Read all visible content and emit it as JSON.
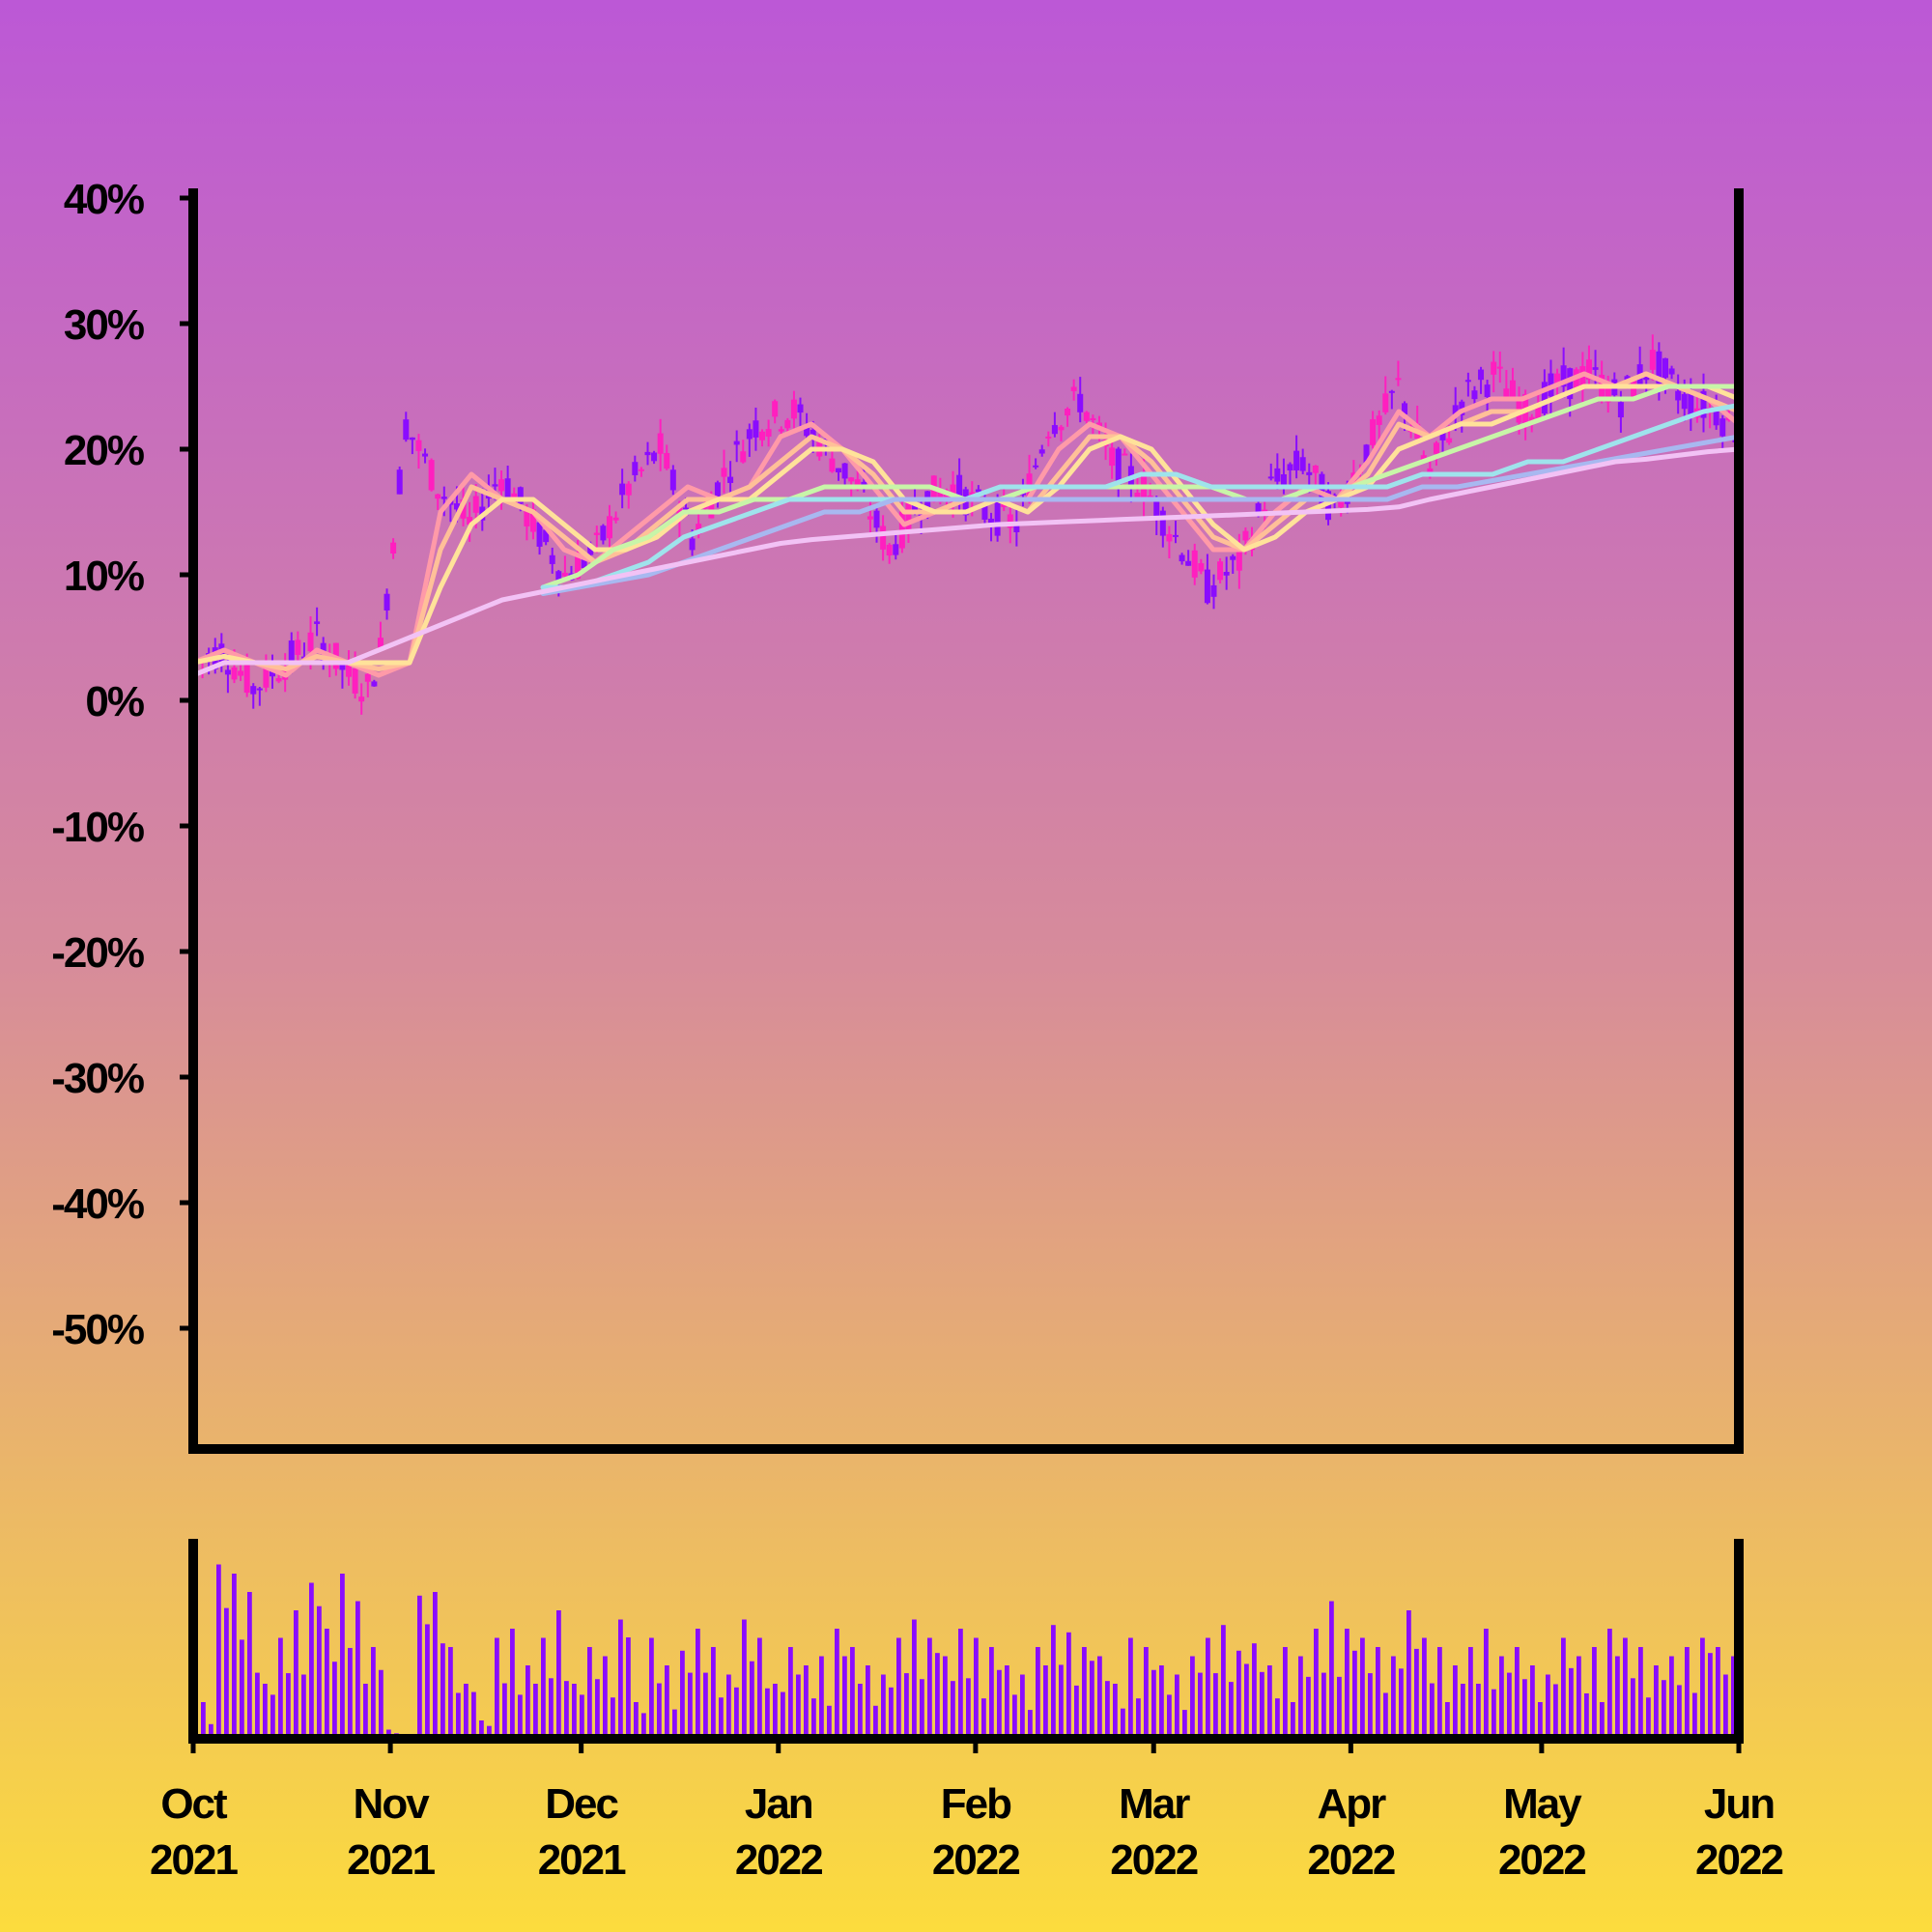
{
  "chart_data": {
    "type": "line",
    "subtype": "candlestick-with-moving-averages-and-volume",
    "y_axis": {
      "unit": "%",
      "ticks": [
        "40%",
        "30%",
        "20%",
        "10%",
        "0%",
        "-10%",
        "-20%",
        "-30%",
        "-40%",
        "-50%"
      ],
      "tick_values": [
        40,
        30,
        20,
        10,
        0,
        -10,
        -20,
        -30,
        -40,
        -50
      ],
      "range": [
        -60,
        40
      ]
    },
    "x_axis": {
      "range": [
        "2021-10-01",
        "2022-06-01"
      ],
      "ticks": [
        {
          "date": "2021-10-01",
          "month": "Oct",
          "year": "2021"
        },
        {
          "date": "2021-11-01",
          "month": "Nov",
          "year": "2021"
        },
        {
          "date": "2021-12-01",
          "month": "Dec",
          "year": "2021"
        },
        {
          "date": "2022-01-01",
          "month": "Jan",
          "year": "2022"
        },
        {
          "date": "2022-02-01",
          "month": "Feb",
          "year": "2022"
        },
        {
          "date": "2022-03-01",
          "month": "Mar",
          "year": "2022"
        },
        {
          "date": "2022-04-01",
          "month": "Apr",
          "year": "2022"
        },
        {
          "date": "2022-05-01",
          "month": "May",
          "year": "2022"
        },
        {
          "date": "2022-06-01",
          "month": "Jun",
          "year": "2022"
        }
      ]
    },
    "price_series": {
      "dates": [
        "2021-10-01",
        "2021-10-05",
        "2021-10-10",
        "2021-10-15",
        "2021-10-20",
        "2021-10-25",
        "2021-10-28",
        "2021-10-30",
        "2021-11-03",
        "2021-11-08",
        "2021-11-13",
        "2021-11-18",
        "2021-11-23",
        "2021-11-28",
        "2021-12-03",
        "2021-12-08",
        "2021-12-13",
        "2021-12-18",
        "2021-12-23",
        "2021-12-28",
        "2022-01-03",
        "2022-01-08",
        "2022-01-13",
        "2022-01-18",
        "2022-01-23",
        "2022-01-28",
        "2022-02-02",
        "2022-02-07",
        "2022-02-12",
        "2022-02-17",
        "2022-02-22",
        "2022-02-27",
        "2022-03-04",
        "2022-03-09",
        "2022-03-14",
        "2022-03-19",
        "2022-03-24",
        "2022-03-29",
        "2022-04-03",
        "2022-04-08",
        "2022-04-13",
        "2022-04-18",
        "2022-04-23",
        "2022-04-28",
        "2022-05-03",
        "2022-05-08",
        "2022-05-13",
        "2022-05-18",
        "2022-05-23",
        "2022-05-28",
        "2022-06-01"
      ],
      "values": [
        3,
        4,
        1,
        3,
        5,
        2,
        1,
        4,
        22,
        17,
        14,
        18,
        14,
        10,
        12,
        17,
        20,
        13,
        18,
        22,
        23,
        20,
        17,
        12,
        16,
        17,
        15,
        14,
        22,
        24,
        19,
        17,
        13,
        9,
        11,
        17,
        19,
        15,
        20,
        25,
        18,
        24,
        26,
        23,
        25,
        26,
        24,
        27,
        24,
        23,
        21
      ]
    },
    "moving_averages": [
      {
        "color": "#ff9aa8",
        "values": [
          3,
          4,
          3,
          2,
          4,
          3,
          2,
          3,
          15,
          18,
          16,
          15,
          12,
          11,
          13,
          15,
          17,
          16,
          17,
          21,
          22,
          20,
          17,
          14,
          15,
          16,
          16,
          16,
          20,
          22,
          21,
          18,
          15,
          12,
          12,
          15,
          17,
          16,
          19,
          23,
          21,
          23,
          24,
          24,
          25,
          26,
          25,
          26,
          25,
          24,
          22
        ]
      },
      {
        "color": "#ffc098",
        "values": [
          3,
          3.5,
          3,
          2.5,
          3.5,
          3,
          2.5,
          3,
          12,
          17,
          16,
          15,
          13,
          11,
          12,
          14,
          16,
          16,
          17,
          19,
          21,
          20,
          18,
          15,
          15,
          16,
          16,
          15,
          18,
          21,
          21,
          19,
          16,
          13,
          12,
          14,
          16,
          16,
          18,
          22,
          21,
          22,
          23,
          23,
          24,
          25,
          25,
          26,
          25,
          24,
          23
        ]
      },
      {
        "color": "#ffe29a",
        "values": [
          3,
          3.5,
          3,
          3,
          3,
          3,
          3,
          3,
          9,
          14,
          16,
          16,
          14,
          12,
          12,
          13,
          15,
          16,
          16,
          18,
          20,
          20,
          19,
          16,
          15,
          15,
          16,
          15,
          17,
          20,
          21,
          20,
          17,
          14,
          12,
          13,
          15,
          16,
          17,
          20,
          21,
          22,
          22,
          23,
          24,
          25,
          25,
          25,
          25,
          25,
          24
        ]
      },
      {
        "color": "#c8f5a8",
        "start": "2021-11-25",
        "values": [
          9,
          10,
          12,
          13,
          15,
          15,
          16,
          16,
          17,
          17,
          17,
          17,
          16,
          16,
          17,
          17,
          17,
          17,
          17,
          17,
          16,
          16,
          17,
          17,
          18,
          19,
          20,
          21,
          22,
          23,
          24,
          24,
          25,
          25,
          25
        ]
      },
      {
        "color": "#9fe3ec",
        "start": "2021-11-25",
        "values": [
          9,
          9,
          10,
          11,
          13,
          14,
          15,
          16,
          16,
          16,
          16,
          16,
          16,
          17,
          17,
          17,
          17,
          18,
          18,
          17,
          17,
          17,
          17,
          17,
          17,
          18,
          18,
          18,
          19,
          19,
          20,
          21,
          22,
          23,
          23.5
        ]
      },
      {
        "color": "#a8b8f0",
        "start": "2021-11-25",
        "values": [
          8.5,
          9,
          9.5,
          10,
          11,
          12,
          13,
          14,
          15,
          15,
          16,
          16,
          16,
          16,
          16,
          16,
          16,
          16,
          16,
          16,
          16,
          16,
          16,
          16,
          16,
          17,
          17,
          17.5,
          18,
          18.5,
          19,
          19.5,
          20,
          20.5,
          21
        ]
      },
      {
        "color": "#f2c2f5",
        "values": [
          2,
          3,
          3,
          3,
          3,
          3,
          4,
          5,
          6,
          7,
          8,
          8.5,
          9,
          9.5,
          10,
          10.5,
          11,
          11.5,
          12,
          12.5,
          12.8,
          13,
          13.2,
          13.4,
          13.6,
          13.8,
          14,
          14.1,
          14.2,
          14.3,
          14.4,
          14.5,
          14.6,
          14.7,
          14.8,
          14.9,
          15,
          15.1,
          15.2,
          15.4,
          16,
          16.5,
          17,
          17.5,
          18,
          18.5,
          19,
          19.2,
          19.5,
          19.8,
          20
        ]
      }
    ],
    "volume": {
      "note": "relative daily volume, 0-1",
      "values": [
        0.2,
        0.95,
        0.9,
        0.8,
        0.3,
        0.55,
        0.7,
        0.85,
        0.6,
        0.9,
        0.75,
        0.5,
        0.05,
        0.0,
        0.78,
        0.8,
        0.5,
        0.3,
        0.1,
        0.55,
        0.6,
        0.4,
        0.55,
        0.7,
        0.3,
        0.5,
        0.45,
        0.65,
        0.2,
        0.55,
        0.4,
        0.48,
        0.6,
        0.5,
        0.35,
        0.65,
        0.55,
        0.3,
        0.5,
        0.4,
        0.45,
        0.6,
        0.5,
        0.4,
        0.35,
        0.55,
        0.65,
        0.55,
        0.45,
        0.6,
        0.55,
        0.5,
        0.4,
        0.35,
        0.5,
        0.62,
        0.58,
        0.5,
        0.45,
        0.3,
        0.55,
        0.5,
        0.4,
        0.35,
        0.45,
        0.55,
        0.62,
        0.48,
        0.52,
        0.4,
        0.5,
        0.45,
        0.6,
        0.75,
        0.6,
        0.55,
        0.5,
        0.45,
        0.7,
        0.55,
        0.5,
        0.4,
        0.5,
        0.6,
        0.45,
        0.5,
        0.4,
        0.35,
        0.55,
        0.45,
        0.5,
        0.6,
        0.55,
        0.5,
        0.4,
        0.45,
        0.5,
        0.55,
        0.5,
        0.45
      ]
    }
  }
}
